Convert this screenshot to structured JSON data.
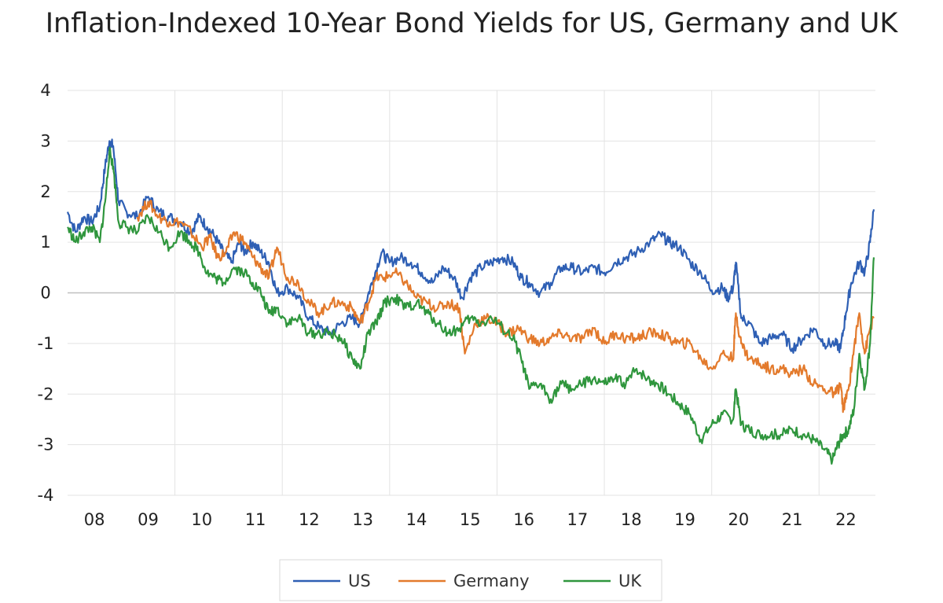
{
  "chart_data": {
    "type": "line",
    "title": "Inflation-Indexed 10-Year Bond Yields for US, Germany and UK",
    "xlabel": "",
    "ylabel": "",
    "xlim": [
      2007.7,
      2022.75
    ],
    "ylim": [
      -4,
      4
    ],
    "yticks": [
      "4",
      "3",
      "2",
      "1",
      "0",
      "-1",
      "-2",
      "-3",
      "-4"
    ],
    "ytick_values": [
      4,
      3,
      2,
      1,
      0,
      -1,
      -2,
      -3,
      -4
    ],
    "xticks": [
      {
        "label": "08",
        "x": 2008.2
      },
      {
        "label": "09",
        "x": 2009.2
      },
      {
        "label": "10",
        "x": 2010.2
      },
      {
        "label": "11",
        "x": 2011.2
      },
      {
        "label": "12",
        "x": 2012.2
      },
      {
        "label": "13",
        "x": 2013.2
      },
      {
        "label": "14",
        "x": 2014.2
      },
      {
        "label": "15",
        "x": 2015.2
      },
      {
        "label": "16",
        "x": 2016.2
      },
      {
        "label": "17",
        "x": 2017.2
      },
      {
        "label": "18",
        "x": 2018.2
      },
      {
        "label": "19",
        "x": 2019.2
      },
      {
        "label": "20",
        "x": 2020.2
      },
      {
        "label": "21",
        "x": 2021.2
      },
      {
        "label": "22",
        "x": 2022.2
      }
    ],
    "grid": {
      "horizontal": true,
      "vertical": true,
      "vertical_positions": [
        2009.7,
        2011.7,
        2013.7,
        2015.7,
        2017.7,
        2019.7,
        2021.7
      ]
    },
    "legend": "bottom",
    "series": [
      {
        "name": "US",
        "color": "#2e5fb4",
        "points": [
          [
            2007.7,
            1.6
          ],
          [
            2007.85,
            1.2
          ],
          [
            2008.0,
            1.5
          ],
          [
            2008.15,
            1.4
          ],
          [
            2008.3,
            1.7
          ],
          [
            2008.4,
            2.5
          ],
          [
            2008.48,
            3.0
          ],
          [
            2008.55,
            2.9
          ],
          [
            2008.65,
            1.8
          ],
          [
            2008.8,
            1.6
          ],
          [
            2009.0,
            1.5
          ],
          [
            2009.2,
            1.9
          ],
          [
            2009.4,
            1.6
          ],
          [
            2009.6,
            1.5
          ],
          [
            2009.8,
            1.4
          ],
          [
            2010.0,
            1.2
          ],
          [
            2010.15,
            1.5
          ],
          [
            2010.3,
            1.3
          ],
          [
            2010.45,
            1.1
          ],
          [
            2010.6,
            0.8
          ],
          [
            2010.75,
            0.6
          ],
          [
            2010.9,
            1.0
          ],
          [
            2011.0,
            0.8
          ],
          [
            2011.15,
            1.0
          ],
          [
            2011.3,
            0.8
          ],
          [
            2011.45,
            0.6
          ],
          [
            2011.6,
            0.0
          ],
          [
            2011.8,
            0.1
          ],
          [
            2012.0,
            -0.1
          ],
          [
            2012.2,
            -0.5
          ],
          [
            2012.4,
            -0.7
          ],
          [
            2012.6,
            -0.8
          ],
          [
            2012.8,
            -0.6
          ],
          [
            2013.0,
            -0.5
          ],
          [
            2013.15,
            -0.6
          ],
          [
            2013.25,
            -0.2
          ],
          [
            2013.4,
            0.3
          ],
          [
            2013.55,
            0.8
          ],
          [
            2013.7,
            0.6
          ],
          [
            2013.9,
            0.7
          ],
          [
            2014.1,
            0.6
          ],
          [
            2014.3,
            0.4
          ],
          [
            2014.5,
            0.2
          ],
          [
            2014.7,
            0.5
          ],
          [
            2014.9,
            0.3
          ],
          [
            2015.05,
            -0.1
          ],
          [
            2015.2,
            0.3
          ],
          [
            2015.4,
            0.5
          ],
          [
            2015.6,
            0.6
          ],
          [
            2015.8,
            0.7
          ],
          [
            2016.0,
            0.6
          ],
          [
            2016.15,
            0.3
          ],
          [
            2016.3,
            0.2
          ],
          [
            2016.5,
            0.0
          ],
          [
            2016.7,
            0.2
          ],
          [
            2016.9,
            0.5
          ],
          [
            2017.1,
            0.5
          ],
          [
            2017.3,
            0.4
          ],
          [
            2017.5,
            0.5
          ],
          [
            2017.7,
            0.4
          ],
          [
            2017.9,
            0.6
          ],
          [
            2018.1,
            0.7
          ],
          [
            2018.3,
            0.8
          ],
          [
            2018.55,
            1.0
          ],
          [
            2018.75,
            1.15
          ],
          [
            2018.9,
            1.0
          ],
          [
            2019.1,
            0.9
          ],
          [
            2019.3,
            0.6
          ],
          [
            2019.5,
            0.4
          ],
          [
            2019.7,
            0.05
          ],
          [
            2019.9,
            0.1
          ],
          [
            2020.0,
            -0.1
          ],
          [
            2020.1,
            0.1
          ],
          [
            2020.15,
            0.6
          ],
          [
            2020.25,
            -0.5
          ],
          [
            2020.4,
            -0.6
          ],
          [
            2020.6,
            -1.0
          ],
          [
            2020.8,
            -0.9
          ],
          [
            2021.0,
            -0.8
          ],
          [
            2021.2,
            -1.1
          ],
          [
            2021.4,
            -0.9
          ],
          [
            2021.6,
            -0.7
          ],
          [
            2021.8,
            -1.0
          ],
          [
            2022.0,
            -1.0
          ],
          [
            2022.1,
            -1.1
          ],
          [
            2022.2,
            -0.4
          ],
          [
            2022.3,
            0.2
          ],
          [
            2022.45,
            0.6
          ],
          [
            2022.55,
            0.4
          ],
          [
            2022.65,
            1.0
          ],
          [
            2022.72,
            1.65
          ]
        ]
      },
      {
        "name": "Germany",
        "color": "#e37a2c",
        "points": [
          [
            2009.0,
            1.5
          ],
          [
            2009.2,
            1.8
          ],
          [
            2009.4,
            1.5
          ],
          [
            2009.6,
            1.4
          ],
          [
            2009.8,
            1.4
          ],
          [
            2010.0,
            1.2
          ],
          [
            2010.2,
            0.9
          ],
          [
            2010.35,
            1.1
          ],
          [
            2010.5,
            0.7
          ],
          [
            2010.65,
            0.8
          ],
          [
            2010.8,
            1.2
          ],
          [
            2011.0,
            1.0
          ],
          [
            2011.15,
            0.7
          ],
          [
            2011.3,
            0.5
          ],
          [
            2011.45,
            0.3
          ],
          [
            2011.6,
            0.9
          ],
          [
            2011.8,
            0.3
          ],
          [
            2012.0,
            0.2
          ],
          [
            2012.2,
            -0.2
          ],
          [
            2012.4,
            -0.4
          ],
          [
            2012.6,
            -0.2
          ],
          [
            2012.8,
            -0.2
          ],
          [
            2013.0,
            -0.3
          ],
          [
            2013.15,
            -0.6
          ],
          [
            2013.3,
            -0.2
          ],
          [
            2013.45,
            0.3
          ],
          [
            2013.6,
            0.3
          ],
          [
            2013.8,
            0.4
          ],
          [
            2014.0,
            0.2
          ],
          [
            2014.2,
            -0.1
          ],
          [
            2014.4,
            -0.2
          ],
          [
            2014.6,
            -0.3
          ],
          [
            2014.8,
            -0.2
          ],
          [
            2015.0,
            -0.3
          ],
          [
            2015.1,
            -1.2
          ],
          [
            2015.3,
            -0.6
          ],
          [
            2015.5,
            -0.5
          ],
          [
            2015.7,
            -0.6
          ],
          [
            2015.9,
            -0.8
          ],
          [
            2016.1,
            -0.7
          ],
          [
            2016.3,
            -0.9
          ],
          [
            2016.5,
            -1.0
          ],
          [
            2016.7,
            -0.9
          ],
          [
            2016.9,
            -0.8
          ],
          [
            2017.1,
            -0.9
          ],
          [
            2017.3,
            -0.9
          ],
          [
            2017.5,
            -0.7
          ],
          [
            2017.7,
            -1.0
          ],
          [
            2017.9,
            -0.8
          ],
          [
            2018.1,
            -0.9
          ],
          [
            2018.3,
            -0.9
          ],
          [
            2018.5,
            -0.8
          ],
          [
            2018.7,
            -0.8
          ],
          [
            2018.9,
            -0.9
          ],
          [
            2019.1,
            -1.0
          ],
          [
            2019.3,
            -1.0
          ],
          [
            2019.5,
            -1.3
          ],
          [
            2019.7,
            -1.5
          ],
          [
            2019.9,
            -1.2
          ],
          [
            2020.1,
            -1.3
          ],
          [
            2020.15,
            -0.4
          ],
          [
            2020.25,
            -1.0
          ],
          [
            2020.4,
            -1.3
          ],
          [
            2020.6,
            -1.4
          ],
          [
            2020.8,
            -1.5
          ],
          [
            2021.0,
            -1.5
          ],
          [
            2021.2,
            -1.6
          ],
          [
            2021.4,
            -1.5
          ],
          [
            2021.6,
            -1.8
          ],
          [
            2021.8,
            -1.9
          ],
          [
            2022.0,
            -2.0
          ],
          [
            2022.1,
            -1.8
          ],
          [
            2022.15,
            -2.3
          ],
          [
            2022.25,
            -1.9
          ],
          [
            2022.35,
            -1.1
          ],
          [
            2022.45,
            -0.4
          ],
          [
            2022.55,
            -1.2
          ],
          [
            2022.65,
            -0.7
          ],
          [
            2022.72,
            -0.5
          ]
        ]
      },
      {
        "name": "UK",
        "color": "#2f963d",
        "points": [
          [
            2007.7,
            1.3
          ],
          [
            2007.85,
            1.0
          ],
          [
            2008.0,
            1.2
          ],
          [
            2008.15,
            1.3
          ],
          [
            2008.3,
            1.0
          ],
          [
            2008.4,
            1.8
          ],
          [
            2008.48,
            2.8
          ],
          [
            2008.55,
            2.5
          ],
          [
            2008.65,
            1.4
          ],
          [
            2008.8,
            1.3
          ],
          [
            2009.0,
            1.2
          ],
          [
            2009.2,
            1.5
          ],
          [
            2009.4,
            1.2
          ],
          [
            2009.6,
            0.9
          ],
          [
            2009.8,
            1.2
          ],
          [
            2010.0,
            1.0
          ],
          [
            2010.15,
            0.8
          ],
          [
            2010.3,
            0.4
          ],
          [
            2010.45,
            0.3
          ],
          [
            2010.6,
            0.2
          ],
          [
            2010.8,
            0.5
          ],
          [
            2011.0,
            0.4
          ],
          [
            2011.15,
            0.2
          ],
          [
            2011.3,
            0.0
          ],
          [
            2011.45,
            -0.4
          ],
          [
            2011.6,
            -0.3
          ],
          [
            2011.8,
            -0.6
          ],
          [
            2012.0,
            -0.5
          ],
          [
            2012.2,
            -0.8
          ],
          [
            2012.4,
            -0.8
          ],
          [
            2012.6,
            -0.8
          ],
          [
            2012.8,
            -0.9
          ],
          [
            2013.0,
            -1.3
          ],
          [
            2013.15,
            -1.5
          ],
          [
            2013.3,
            -0.8
          ],
          [
            2013.45,
            -0.6
          ],
          [
            2013.6,
            -0.2
          ],
          [
            2013.8,
            -0.1
          ],
          [
            2014.0,
            -0.3
          ],
          [
            2014.2,
            -0.2
          ],
          [
            2014.4,
            -0.4
          ],
          [
            2014.6,
            -0.6
          ],
          [
            2014.8,
            -0.8
          ],
          [
            2015.0,
            -0.7
          ],
          [
            2015.2,
            -0.5
          ],
          [
            2015.4,
            -0.6
          ],
          [
            2015.6,
            -0.5
          ],
          [
            2015.8,
            -0.7
          ],
          [
            2016.0,
            -0.9
          ],
          [
            2016.15,
            -1.3
          ],
          [
            2016.3,
            -1.9
          ],
          [
            2016.5,
            -1.8
          ],
          [
            2016.7,
            -2.1
          ],
          [
            2016.9,
            -1.8
          ],
          [
            2017.1,
            -1.9
          ],
          [
            2017.3,
            -1.8
          ],
          [
            2017.5,
            -1.7
          ],
          [
            2017.7,
            -1.8
          ],
          [
            2017.9,
            -1.7
          ],
          [
            2018.1,
            -1.8
          ],
          [
            2018.3,
            -1.5
          ],
          [
            2018.5,
            -1.7
          ],
          [
            2018.7,
            -1.8
          ],
          [
            2018.9,
            -2.0
          ],
          [
            2019.1,
            -2.2
          ],
          [
            2019.3,
            -2.4
          ],
          [
            2019.5,
            -2.9
          ],
          [
            2019.7,
            -2.6
          ],
          [
            2019.9,
            -2.4
          ],
          [
            2020.1,
            -2.5
          ],
          [
            2020.15,
            -1.9
          ],
          [
            2020.25,
            -2.6
          ],
          [
            2020.4,
            -2.7
          ],
          [
            2020.6,
            -2.8
          ],
          [
            2020.8,
            -2.8
          ],
          [
            2021.0,
            -2.8
          ],
          [
            2021.2,
            -2.7
          ],
          [
            2021.4,
            -2.8
          ],
          [
            2021.6,
            -2.9
          ],
          [
            2021.8,
            -3.1
          ],
          [
            2021.95,
            -3.3
          ],
          [
            2022.05,
            -3.0
          ],
          [
            2022.15,
            -2.8
          ],
          [
            2022.25,
            -2.7
          ],
          [
            2022.35,
            -2.3
          ],
          [
            2022.45,
            -1.2
          ],
          [
            2022.55,
            -1.9
          ],
          [
            2022.65,
            -1.0
          ],
          [
            2022.72,
            0.7
          ]
        ]
      }
    ]
  }
}
